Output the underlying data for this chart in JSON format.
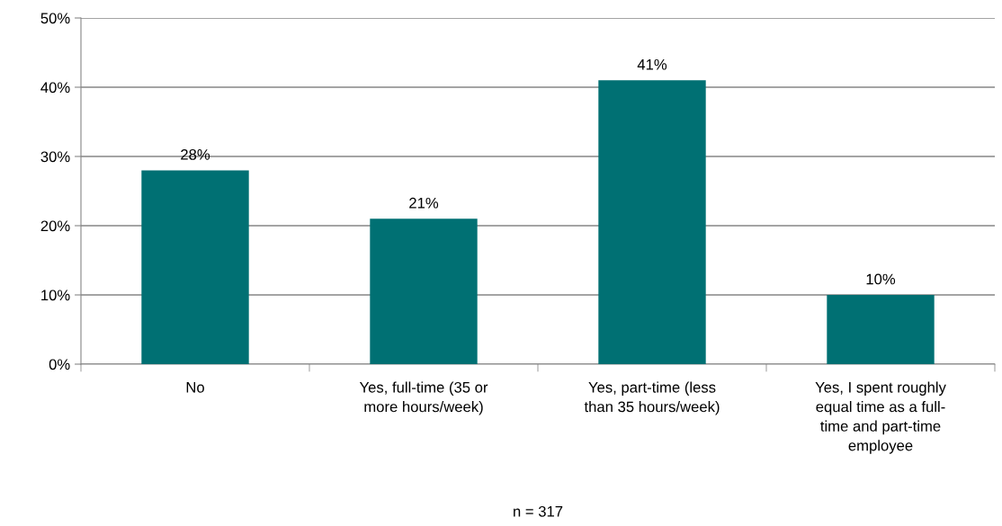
{
  "chart_data": {
    "type": "bar",
    "categories": [
      "No",
      "Yes, full-time (35 or\nmore hours/week)",
      "Yes, part-time (less\nthan 35 hours/week)",
      "Yes, I spent roughly\nequal time as a full-\ntime and part-time\nemployee"
    ],
    "values": [
      28,
      21,
      41,
      10
    ],
    "color": "#007073",
    "ylim": [
      0,
      50
    ],
    "yticks": [
      {
        "value": 0,
        "label": "0%"
      },
      {
        "value": 10,
        "label": "10%"
      },
      {
        "value": 20,
        "label": "20%"
      },
      {
        "value": 30,
        "label": "30%"
      },
      {
        "value": 40,
        "label": "40%"
      },
      {
        "value": 50,
        "label": "50%"
      }
    ],
    "value_labels": [
      "28%",
      "21%",
      "41%",
      "10%"
    ],
    "grid": "y",
    "annotations": [
      "n = 317"
    ]
  }
}
